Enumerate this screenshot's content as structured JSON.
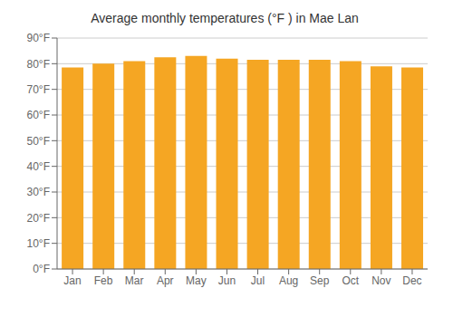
{
  "chart_data": {
    "type": "bar",
    "title": "Average monthly temperatures (°F ) in Mae Lan",
    "categories": [
      "Jan",
      "Feb",
      "Mar",
      "Apr",
      "May",
      "Jun",
      "Jul",
      "Aug",
      "Sep",
      "Oct",
      "Nov",
      "Dec"
    ],
    "values": [
      78.5,
      80.0,
      81.0,
      82.5,
      83.0,
      82.0,
      81.5,
      81.5,
      81.5,
      81.0,
      79.0,
      78.5
    ],
    "color": "#F5A623",
    "ylim": [
      0,
      90
    ],
    "yticks": [
      {
        "value": 0,
        "label": "0°F"
      },
      {
        "value": 10,
        "label": "10°F"
      },
      {
        "value": 20,
        "label": "20°F"
      },
      {
        "value": 30,
        "label": "30°F"
      },
      {
        "value": 40,
        "label": "40°F"
      },
      {
        "value": 50,
        "label": "50°F"
      },
      {
        "value": 60,
        "label": "60°F"
      },
      {
        "value": 70,
        "label": "70°F"
      },
      {
        "value": 80,
        "label": "80°F"
      },
      {
        "value": 90,
        "label": "90°F"
      }
    ],
    "grid": true
  }
}
